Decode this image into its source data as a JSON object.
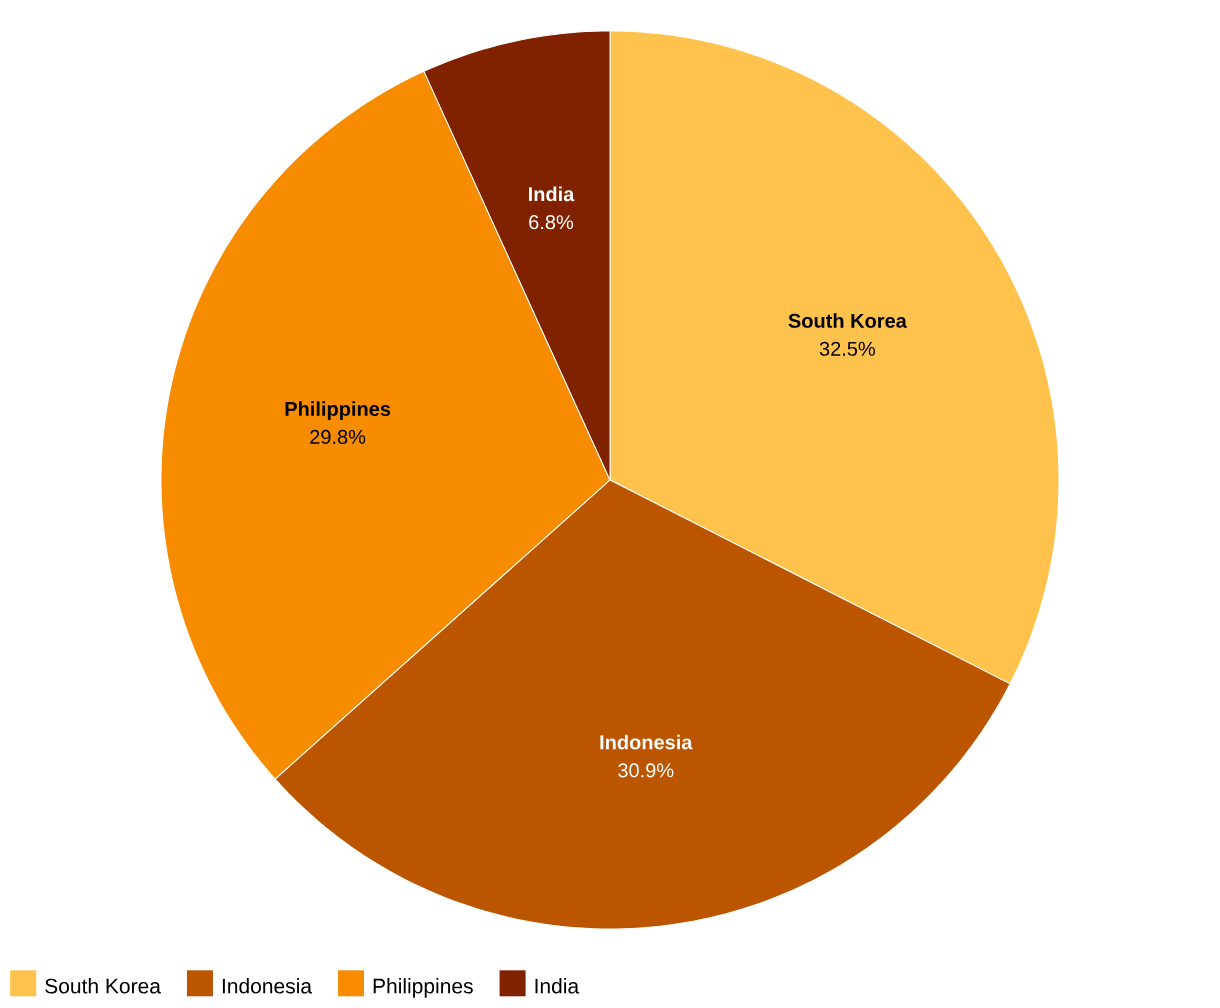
{
  "chart_data": {
    "type": "pie",
    "categories": [
      "South Korea",
      "Indonesia",
      "Philippines",
      "India"
    ],
    "values": [
      32.5,
      30.9,
      29.8,
      6.8
    ],
    "value_labels": [
      "32.5%",
      "30.9%",
      "29.8%",
      "6.8%"
    ],
    "colors": [
      "#ffc34d",
      "#bb5500",
      "#f78c00",
      "#802200"
    ],
    "legend": "bottom"
  }
}
